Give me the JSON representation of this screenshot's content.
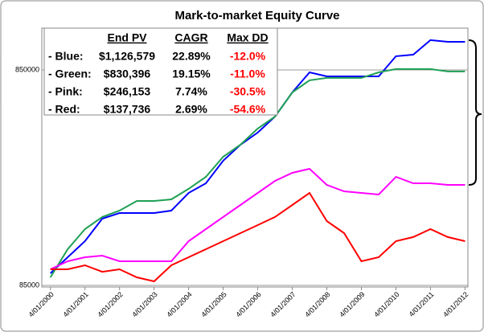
{
  "chart_data": {
    "type": "line",
    "title": "Mark-to-market Equity Curve",
    "log_scale_y": true,
    "grid": true,
    "ylim": [
      83550,
      1328000
    ],
    "yticks": [
      85000,
      850000
    ],
    "xlim": [
      "1/01/2000",
      "5/01/2012"
    ],
    "xticks": [
      "4/01/2000",
      "4/01/2001",
      "4/01/2002",
      "4/01/2003",
      "4/01/2004",
      "4/01/2005",
      "4/01/2006",
      "4/01/2007",
      "4/01/2008",
      "4/01/2009",
      "4/01/2010",
      "4/01/2011",
      "4/01/2012"
    ],
    "x": [
      "4/01/2000",
      "10/01/2000",
      "4/01/2001",
      "10/01/2001",
      "4/01/2002",
      "10/01/2002",
      "4/01/2003",
      "10/01/2003",
      "4/01/2004",
      "10/01/2004",
      "4/01/2005",
      "10/01/2005",
      "4/01/2006",
      "10/01/2006",
      "4/01/2007",
      "10/01/2007",
      "4/01/2008",
      "10/01/2008",
      "4/01/2009",
      "10/01/2009",
      "4/01/2010",
      "10/01/2010",
      "4/01/2011",
      "10/01/2011",
      "4/01/2012"
    ],
    "series": [
      {
        "name": "Blue",
        "color": "#0000ff",
        "values": [
          96700,
          114800,
          136300,
          173400,
          184200,
          184200,
          184200,
          188900,
          228300,
          253100,
          322000,
          382300,
          435000,
          516300,
          668300,
          828300,
          793500,
          793500,
          793500,
          793500,
          983700,
          1000500,
          1168000,
          1148000,
          1148000
        ]
      },
      {
        "name": "Green",
        "color": "#1fa055",
        "values": [
          92600,
          125100,
          155100,
          176500,
          188900,
          209400,
          209400,
          213100,
          238400,
          271100,
          336100,
          382300,
          454100,
          516300,
          668300,
          760200,
          780000,
          780000,
          780000,
          828300,
          857300,
          857300,
          857300,
          835500,
          835500
        ]
      },
      {
        "name": "Pink",
        "color": "#ff00ff",
        "values": [
          100900,
          110000,
          114800,
          116800,
          110000,
          110000,
          110000,
          110000,
          136300,
          155100,
          176500,
          200600,
          228300,
          259700,
          283000,
          295400,
          248800,
          232300,
          228300,
          224400,
          271100,
          253100,
          253100,
          248800,
          248800
        ]
      },
      {
        "name": "Red",
        "color": "#ff0000",
        "values": [
          100900,
          100900,
          105400,
          98300,
          100900,
          92600,
          88700,
          105400,
          114800,
          125100,
          136300,
          148600,
          161900,
          176500,
          200600,
          228300,
          169000,
          148600,
          110000,
          114800,
          136300,
          142400,
          155100,
          142400,
          136300
        ]
      }
    ],
    "stats_table": {
      "columns": [
        "End PV",
        "CAGR",
        "Max DD"
      ],
      "rows": [
        [
          "- Blue:",
          "$1,126,579",
          "22.89%",
          "-12.0%"
        ],
        [
          "- Green:",
          "$830,396",
          "19.15%",
          "-11.0%"
        ],
        [
          "- Pink:",
          "$246,153",
          "7.74%",
          "-30.5%"
        ],
        [
          "- Red:",
          "$137,736",
          "2.69%",
          "-54.6%"
        ]
      ]
    }
  }
}
